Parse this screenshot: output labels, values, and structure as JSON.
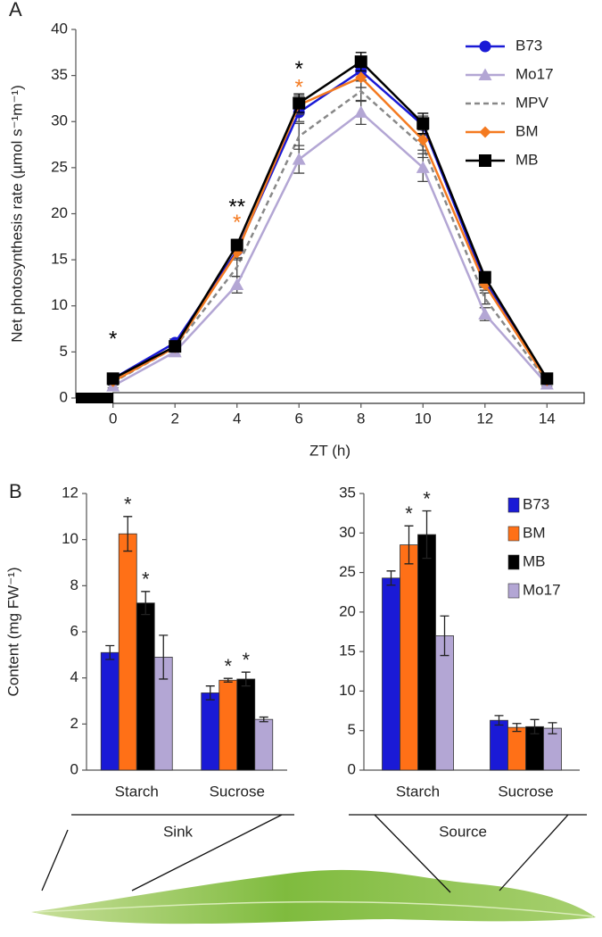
{
  "chart_data": [
    {
      "type": "line",
      "panel": "A",
      "xlabel": "ZT (h)",
      "ylabel": "Net photosynthesis rate (µmol s⁻¹m⁻¹)",
      "x": [
        0,
        2,
        4,
        6,
        8,
        10,
        12,
        14
      ],
      "xlim": [
        -1.2,
        15.2
      ],
      "xticks": [
        0,
        2,
        4,
        6,
        8,
        10,
        12,
        14
      ],
      "ylim": [
        0,
        40
      ],
      "yticks": [
        0,
        5,
        10,
        15,
        20,
        25,
        30,
        35,
        40
      ],
      "light_bar": {
        "dark": [
          -1.2,
          0
        ],
        "light": [
          0,
          15.2
        ]
      },
      "legend": "top-right",
      "series": [
        {
          "name": "B73",
          "color": "#1a1ad6",
          "marker": "circle",
          "values": [
            2.1,
            6.0,
            16.0,
            31.0,
            35.5,
            29.6,
            12.6,
            2.0
          ],
          "errors": [
            0.3,
            0.4,
            0.8,
            1.0,
            1.0,
            1.0,
            0.6,
            0.2
          ]
        },
        {
          "name": "Mo17",
          "color": "#b3a6d4",
          "marker": "triangle",
          "values": [
            1.3,
            5.0,
            12.3,
            25.9,
            31.0,
            25.0,
            9.1,
            1.5
          ],
          "errors": [
            0.2,
            0.3,
            0.9,
            1.5,
            1.3,
            1.5,
            0.7,
            0.2
          ]
        },
        {
          "name": "MPV",
          "color": "#888888",
          "marker": "none",
          "dash": true,
          "values": [
            1.7,
            5.5,
            14.2,
            28.4,
            33.3,
            27.3,
            10.8,
            1.8
          ],
          "errors": [
            0.3,
            0.3,
            1.0,
            1.4,
            1.1,
            1.2,
            0.6,
            0.2
          ]
        },
        {
          "name": "BM",
          "color": "#f47a20",
          "marker": "diamond",
          "values": [
            1.8,
            5.5,
            15.8,
            31.8,
            34.8,
            28.0,
            12.3,
            1.9
          ],
          "errors": [
            0.3,
            0.3,
            0.8,
            1.0,
            1.1,
            1.1,
            0.6,
            0.2
          ]
        },
        {
          "name": "MB",
          "color": "#000000",
          "marker": "square",
          "values": [
            2.1,
            5.6,
            16.6,
            32.0,
            36.5,
            29.8,
            13.1,
            2.1
          ],
          "errors": [
            0.3,
            0.3,
            0.6,
            1.0,
            1.0,
            1.1,
            0.6,
            0.2
          ]
        }
      ],
      "annotations": [
        {
          "text": "*",
          "x": 0,
          "y": 6.3,
          "color": "#000000"
        },
        {
          "text": "**",
          "x": 4,
          "y": 20.6,
          "color": "#000000"
        },
        {
          "text": "*",
          "x": 4,
          "y": 18.9,
          "color": "#f47a20"
        },
        {
          "text": "*",
          "x": 6,
          "y": 35.6,
          "color": "#000000"
        },
        {
          "text": "*",
          "x": 6,
          "y": 33.6,
          "color": "#f47a20"
        }
      ]
    },
    {
      "type": "bar",
      "panel": "B",
      "ylabel": "Content (mg FW⁻¹)",
      "group": "Sink",
      "categories": [
        "Starch",
        "Sucrose"
      ],
      "ylim": [
        0,
        12
      ],
      "yticks": [
        0,
        2,
        4,
        6,
        8,
        10,
        12
      ],
      "series": [
        {
          "name": "B73",
          "color": "#1a1ad6",
          "values": [
            5.1,
            3.35
          ],
          "errors": [
            0.3,
            0.3
          ],
          "significance": [
            null,
            null
          ]
        },
        {
          "name": "BM",
          "color": "#ff7017",
          "values": [
            10.25,
            3.9
          ],
          "errors": [
            0.75,
            0.08
          ],
          "significance": [
            "*",
            "*"
          ]
        },
        {
          "name": "MB",
          "color": "#000000",
          "values": [
            7.25,
            3.95
          ],
          "errors": [
            0.5,
            0.3
          ],
          "significance": [
            "*",
            "*"
          ]
        },
        {
          "name": "Mo17",
          "color": "#b3a6d4",
          "values": [
            4.9,
            2.2
          ],
          "errors": [
            0.95,
            0.1
          ],
          "significance": [
            null,
            null
          ]
        }
      ]
    },
    {
      "type": "bar",
      "group": "Source",
      "legend": "top-right",
      "categories": [
        "Starch",
        "Sucrose"
      ],
      "ylim": [
        0,
        35
      ],
      "yticks": [
        0,
        5,
        10,
        15,
        20,
        25,
        30,
        35
      ],
      "series": [
        {
          "name": "B73",
          "color": "#1a1ad6",
          "values": [
            24.3,
            6.3
          ],
          "errors": [
            0.9,
            0.6
          ],
          "significance": [
            null,
            null
          ]
        },
        {
          "name": "BM",
          "color": "#ff7017",
          "values": [
            28.5,
            5.4
          ],
          "errors": [
            2.4,
            0.5
          ],
          "significance": [
            "*",
            null
          ]
        },
        {
          "name": "MB",
          "color": "#000000",
          "values": [
            29.8,
            5.5
          ],
          "errors": [
            3.0,
            0.9
          ],
          "significance": [
            "*",
            null
          ]
        },
        {
          "name": "Mo17",
          "color": "#b3a6d4",
          "values": [
            17.0,
            5.3
          ],
          "errors": [
            2.5,
            0.7
          ],
          "significance": [
            null,
            null
          ]
        }
      ]
    }
  ]
}
